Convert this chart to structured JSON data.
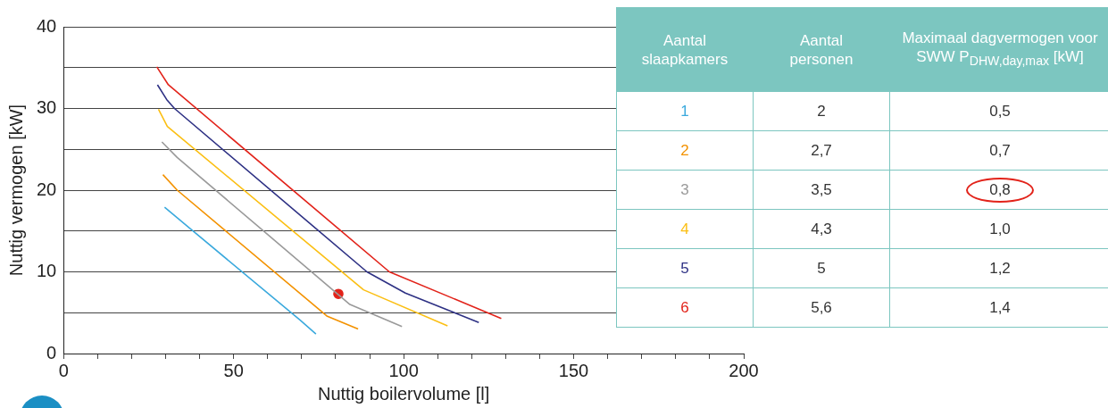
{
  "chart_data": {
    "type": "line",
    "xlabel": "Nuttig boilervolume [l]",
    "ylabel": "Nuttig vermogen [kW]",
    "xlim": [
      0,
      200
    ],
    "xticks": [
      0,
      {
        "value": 10,
        "label": null
      },
      {
        "value": 20,
        "label": null
      },
      {
        "value": 30,
        "label": null
      },
      {
        "value": 40,
        "label": null
      },
      50,
      {
        "value": 60,
        "label": null
      },
      {
        "value": 70,
        "label": null
      },
      {
        "value": 80,
        "label": null
      },
      {
        "value": 90,
        "label": null
      },
      100,
      {
        "value": 110,
        "label": null
      },
      {
        "value": 120,
        "label": null
      },
      {
        "value": 130,
        "label": null
      },
      {
        "value": 140,
        "label": null
      },
      150,
      {
        "value": 160,
        "label": null
      },
      {
        "value": 170,
        "label": null
      },
      {
        "value": 180,
        "label": null
      },
      {
        "value": 190,
        "label": null
      },
      200
    ],
    "ylim": [
      0,
      40
    ],
    "yticks": [
      0,
      {
        "value": 5,
        "label": null
      },
      10,
      {
        "value": 15,
        "label": null
      },
      20,
      {
        "value": 25,
        "label": null
      },
      30,
      {
        "value": 35,
        "label": null
      },
      40
    ],
    "grid": "y",
    "legend": "right",
    "marker": "none",
    "line_style": "solid",
    "series": [
      {
        "name": "1",
        "color": "#3aa9dd",
        "x": [
          29.7,
          69.5,
          74.2
        ],
        "values": [
          17.9,
          4.1,
          2.4
        ]
      },
      {
        "name": "2",
        "color": "#f39200",
        "x": [
          29.2,
          33.4,
          77.4,
          86.6
        ],
        "values": [
          21.9,
          20,
          4.6,
          3
        ]
      },
      {
        "name": "3",
        "color": "#9a9a9a",
        "x": [
          28.9,
          33.4,
          84.2,
          99.5
        ],
        "values": [
          25.9,
          24,
          6,
          3.3
        ]
      },
      {
        "name": "4",
        "color": "#fbbf14",
        "x": [
          27.9,
          30.5,
          88.2,
          112.9
        ],
        "values": [
          29.9,
          27.8,
          7.8,
          3.4
        ]
      },
      {
        "name": "5",
        "color": "#2e3184",
        "x": [
          27.6,
          30.3,
          32.6,
          89.2,
          100.5,
          122.1
        ],
        "values": [
          32.9,
          31.1,
          30,
          10,
          7.4,
          3.8
        ]
      },
      {
        "name": "6",
        "color": "#e2231a",
        "x": [
          27.4,
          30.8,
          95.8,
          128.7
        ],
        "values": [
          35.1,
          32.9,
          10,
          4.3
        ]
      },
      {
        "type": "scatter",
        "marker": "circle",
        "color": "#e2231a",
        "x": [
          80.8
        ],
        "values": [
          7.3
        ]
      }
    ],
    "annotations": [
      "Aantal slaapkamers",
      "Aantal personen",
      "Maximaal dagvermogen voor SWW P$_{DHW,day,max}$ [kW]",
      "2",
      "0,5",
      "2,7",
      "0,7",
      "3,5",
      "0,8",
      "4,3",
      "1,0",
      "5",
      "1,2",
      "5,6",
      "1,4"
    ]
  }
}
